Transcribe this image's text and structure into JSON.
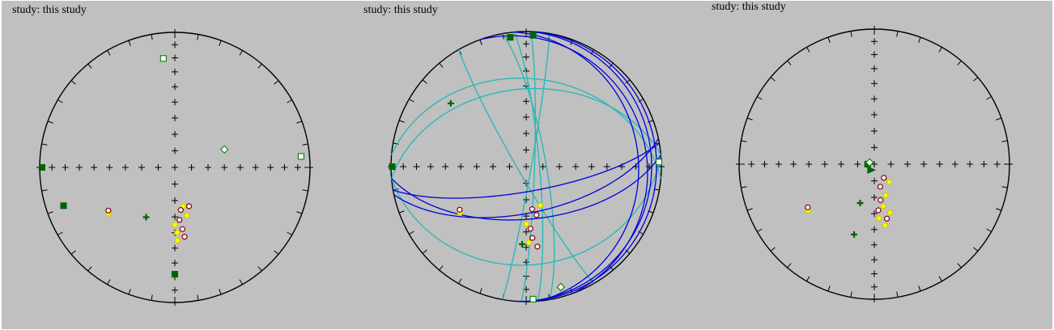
{
  "chart_data": [
    {
      "type": "scatter",
      "title": "study: this study",
      "grid": true,
      "points": [
        {
          "dec": 354,
          "inc": 20,
          "marker": "square",
          "filled": false,
          "color": "#008000"
        },
        {
          "dec": 70,
          "inc": 58,
          "marker": "diamond",
          "filled": false,
          "color": "#008000"
        },
        {
          "dec": 85,
          "inc": 7,
          "marker": "square",
          "filled": false,
          "color": "#008000"
        },
        {
          "dec": 270,
          "inc": 2,
          "marker": "square",
          "filled": true,
          "color": "#006400"
        },
        {
          "dec": 251,
          "inc": 14,
          "marker": "square",
          "filled": true,
          "color": "#006400"
        },
        {
          "dec": 180,
          "inc": 22,
          "marker": "square",
          "filled": true,
          "color": "#006400"
        },
        {
          "dec": 210,
          "inc": 55,
          "marker": "plus",
          "filled": true,
          "color": "#006400"
        },
        {
          "dec": 235,
          "inc": 40,
          "marker": "circle",
          "filled": true,
          "color": "#ffff00"
        },
        {
          "dec": 237,
          "inc": 41,
          "marker": "circle",
          "filled": false,
          "color": "#800000"
        },
        {
          "dec": 168,
          "inc": 66,
          "marker": "circle",
          "filled": true,
          "color": "#ffff00"
        },
        {
          "dec": 172,
          "inc": 64,
          "marker": "circle",
          "filled": false,
          "color": "#800000"
        },
        {
          "dec": 160,
          "inc": 65,
          "marker": "circle",
          "filled": false,
          "color": "#800000"
        },
        {
          "dec": 166,
          "inc": 60,
          "marker": "circle",
          "filled": true,
          "color": "#ffff00"
        },
        {
          "dec": 175,
          "inc": 58,
          "marker": "circle",
          "filled": false,
          "color": "#800000"
        },
        {
          "dec": 180,
          "inc": 55,
          "marker": "circle",
          "filled": true,
          "color": "#ffff00"
        },
        {
          "dec": 173,
          "inc": 52,
          "marker": "circle",
          "filled": false,
          "color": "#800000"
        },
        {
          "dec": 178,
          "inc": 50,
          "marker": "circle",
          "filled": true,
          "color": "#ffff00"
        },
        {
          "dec": 172,
          "inc": 47,
          "marker": "circle",
          "filled": false,
          "color": "#800000"
        },
        {
          "dec": 178,
          "inc": 45,
          "marker": "circle",
          "filled": true,
          "color": "#ffff00"
        }
      ]
    },
    {
      "type": "scatter",
      "title": "study: this study",
      "grid": true,
      "great_circles_blue": [
        {
          "dip_dec": 170,
          "dip": 75
        },
        {
          "dip_dec": 175,
          "dip": 58
        },
        {
          "dip_dec": 168,
          "dip": 62
        },
        {
          "dip_dec": 85,
          "dip": 18
        },
        {
          "dip_dec": 92,
          "dip": 8
        },
        {
          "dip_dec": 70,
          "dip": 12
        },
        {
          "dip_dec": 95,
          "dip": 4
        }
      ],
      "great_circles_cyan": [
        {
          "dip_dec": 80,
          "dip": 78
        },
        {
          "dip_dec": 85,
          "dip": 82
        },
        {
          "dip_dec": 92,
          "dip": 85
        },
        {
          "dip_dec": 100,
          "dip": 87
        },
        {
          "dip_dec": 240,
          "dip": 85
        },
        {
          "dip_dec": 5,
          "dip": 35
        },
        {
          "dip_dec": 355,
          "dip": 42
        },
        {
          "dip_dec": 175,
          "dip": 28
        }
      ],
      "points": [
        {
          "dec": 353,
          "inc": 4,
          "marker": "square",
          "filled": true,
          "color": "#006400"
        },
        {
          "dec": 3,
          "inc": 3,
          "marker": "square",
          "filled": true,
          "color": "#006400"
        },
        {
          "dec": 310,
          "inc": 28,
          "marker": "plus",
          "filled": true,
          "color": "#006400"
        },
        {
          "dec": 270,
          "inc": 1,
          "marker": "square",
          "filled": true,
          "color": "#006400"
        },
        {
          "dec": 88,
          "inc": 2,
          "marker": "square",
          "filled": false,
          "color": "#008000"
        },
        {
          "dec": 177,
          "inc": 2,
          "marker": "square",
          "filled": false,
          "color": "#008000"
        },
        {
          "dec": 164,
          "inc": 8,
          "marker": "diamond",
          "filled": false,
          "color": "#008000"
        },
        {
          "dec": 235,
          "inc": 40,
          "marker": "circle",
          "filled": true,
          "color": "#ffff00"
        },
        {
          "dec": 237,
          "inc": 41,
          "marker": "circle",
          "filled": false,
          "color": "#800000"
        },
        {
          "dec": 180,
          "inc": 55,
          "marker": "circle",
          "filled": true,
          "color": "#ffff00"
        },
        {
          "dec": 176,
          "inc": 52,
          "marker": "circle",
          "filled": false,
          "color": "#800000"
        },
        {
          "dec": 168,
          "inc": 60,
          "marker": "circle",
          "filled": false,
          "color": "#800000"
        },
        {
          "dec": 160,
          "inc": 65,
          "marker": "circle",
          "filled": true,
          "color": "#ffff00"
        },
        {
          "dec": 172,
          "inc": 64,
          "marker": "circle",
          "filled": false,
          "color": "#800000"
        },
        {
          "dec": 175,
          "inc": 46,
          "marker": "circle",
          "filled": false,
          "color": "#800000"
        },
        {
          "dec": 178,
          "inc": 43,
          "marker": "circle",
          "filled": true,
          "color": "#ffff00"
        },
        {
          "dec": 183,
          "inc": 42,
          "marker": "plus",
          "filled": true,
          "color": "#006400"
        },
        {
          "dec": 172,
          "inc": 40,
          "marker": "circle",
          "filled": false,
          "color": "#800000"
        }
      ]
    },
    {
      "type": "scatter",
      "title": "study: this study",
      "grid": true,
      "points": [
        {
          "dec": 235,
          "inc": 40,
          "marker": "circle",
          "filled": true,
          "color": "#ffff00"
        },
        {
          "dec": 237,
          "inc": 41,
          "marker": "circle",
          "filled": false,
          "color": "#800000"
        },
        {
          "dec": 200,
          "inc": 65,
          "marker": "plus",
          "filled": true,
          "color": "#006400"
        },
        {
          "dec": 196,
          "inc": 45,
          "marker": "plus",
          "filled": true,
          "color": "#006400"
        },
        {
          "dec": 270,
          "inc": 86,
          "marker": "square",
          "filled": true,
          "color": "#006400"
        },
        {
          "dec": 290,
          "inc": 87,
          "marker": "diamond",
          "filled": false,
          "color": "#008000"
        },
        {
          "dec": 210,
          "inc": 86,
          "marker": "triangle",
          "filled": true,
          "color": "#006400"
        },
        {
          "dec": 160,
          "inc": 70,
          "marker": "circle",
          "filled": true,
          "color": "#ffff00"
        },
        {
          "dec": 165,
          "inc": 76,
          "marker": "circle",
          "filled": false,
          "color": "#800000"
        },
        {
          "dec": 140,
          "inc": 76,
          "marker": "circle",
          "filled": true,
          "color": "#ffff00"
        },
        {
          "dec": 145,
          "inc": 80,
          "marker": "circle",
          "filled": false,
          "color": "#800000"
        },
        {
          "dec": 170,
          "inc": 68,
          "marker": "circle",
          "filled": false,
          "color": "#800000"
        },
        {
          "dec": 175,
          "inc": 62,
          "marker": "circle",
          "filled": false,
          "color": "#800000"
        },
        {
          "dec": 168,
          "inc": 64,
          "marker": "circle",
          "filled": true,
          "color": "#ffff00"
        },
        {
          "dec": 175,
          "inc": 57,
          "marker": "circle",
          "filled": true,
          "color": "#ffff00"
        },
        {
          "dec": 162,
          "inc": 59,
          "marker": "circle",
          "filled": true,
          "color": "#ffff00"
        },
        {
          "dec": 167,
          "inc": 56,
          "marker": "circle",
          "filled": false,
          "color": "#800000"
        },
        {
          "dec": 170,
          "inc": 52,
          "marker": "circle",
          "filled": true,
          "color": "#ffff00"
        }
      ]
    }
  ]
}
